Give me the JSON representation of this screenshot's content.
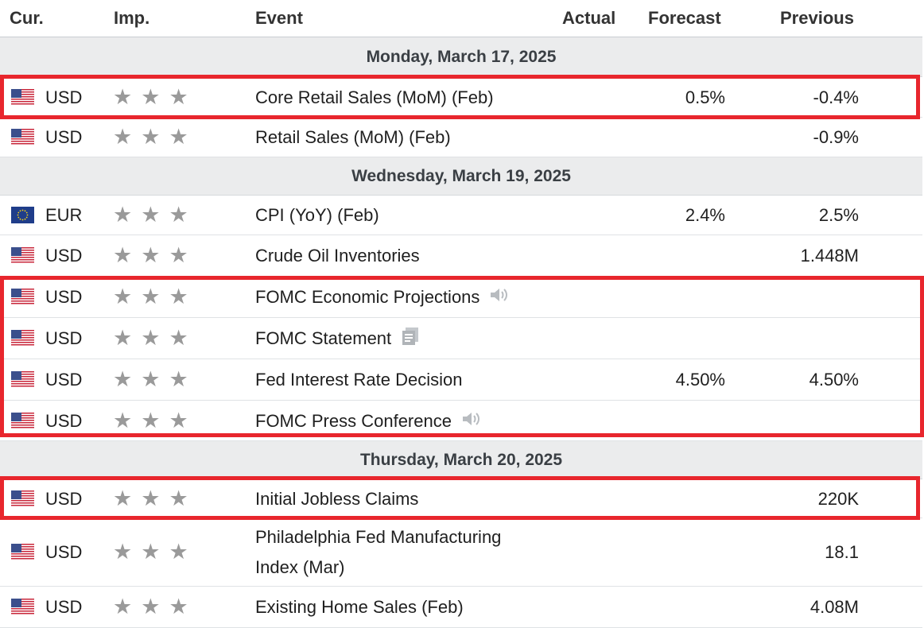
{
  "columns": {
    "currency": "Cur.",
    "importance": "Imp.",
    "event": "Event",
    "actual": "Actual",
    "forecast": "Forecast",
    "previous": "Previous"
  },
  "dates": [
    "Monday, March 17, 2025",
    "Wednesday, March 19, 2025",
    "Thursday, March 20, 2025"
  ],
  "events": [
    {
      "currency": "USD",
      "flag": "us-flag-icon",
      "stars": 3,
      "event": "Core Retail Sales (MoM) (Feb)",
      "actual": "",
      "forecast": "0.5%",
      "previous": "-0.4%",
      "event_icon": "",
      "highlighted": true
    },
    {
      "currency": "USD",
      "flag": "us-flag-icon",
      "stars": 3,
      "event": "Retail Sales (MoM) (Feb)",
      "actual": "",
      "forecast": "",
      "previous": "-0.9%",
      "event_icon": "",
      "highlighted": false
    },
    {
      "currency": "EUR",
      "flag": "eu-flag-icon",
      "stars": 3,
      "event": "CPI (YoY) (Feb)",
      "actual": "",
      "forecast": "2.4%",
      "previous": "2.5%",
      "event_icon": "",
      "highlighted": false
    },
    {
      "currency": "USD",
      "flag": "us-flag-icon",
      "stars": 3,
      "event": "Crude Oil Inventories",
      "actual": "",
      "forecast": "",
      "previous": "1.448M",
      "event_icon": "",
      "highlighted": false
    },
    {
      "currency": "USD",
      "flag": "us-flag-icon",
      "stars": 3,
      "event": "FOMC Economic Projections",
      "actual": "",
      "forecast": "",
      "previous": "",
      "event_icon": "speaker-icon",
      "highlighted": true
    },
    {
      "currency": "USD",
      "flag": "us-flag-icon",
      "stars": 3,
      "event": "FOMC Statement",
      "actual": "",
      "forecast": "",
      "previous": "",
      "event_icon": "document-icon",
      "highlighted": true
    },
    {
      "currency": "USD",
      "flag": "us-flag-icon",
      "stars": 3,
      "event": "Fed Interest Rate Decision",
      "actual": "",
      "forecast": "4.50%",
      "previous": "4.50%",
      "event_icon": "",
      "highlighted": true
    },
    {
      "currency": "USD",
      "flag": "us-flag-icon",
      "stars": 3,
      "event": "FOMC Press Conference",
      "actual": "",
      "forecast": "",
      "previous": "",
      "event_icon": "speaker-icon",
      "highlighted": true
    },
    {
      "currency": "USD",
      "flag": "us-flag-icon",
      "stars": 3,
      "event": "Initial Jobless Claims",
      "actual": "",
      "forecast": "",
      "previous": "220K",
      "event_icon": "",
      "highlighted": true
    },
    {
      "currency": "USD",
      "flag": "us-flag-icon",
      "stars": 3,
      "event_line1": "Philadelphia Fed Manufacturing",
      "event_line2": "Index (Mar)",
      "actual": "",
      "forecast": "",
      "previous": "18.1",
      "event_icon": "",
      "highlighted": false
    },
    {
      "currency": "USD",
      "flag": "us-flag-icon",
      "stars": 3,
      "event": "Existing Home Sales (Feb)",
      "actual": "",
      "forecast": "",
      "previous": "4.08M",
      "event_icon": "",
      "highlighted": false
    }
  ],
  "colors": {
    "highlight": "#e8262d",
    "date_row_bg": "#ebeced",
    "star": "#9a9a9a"
  }
}
